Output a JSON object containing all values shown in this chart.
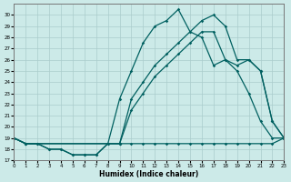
{
  "bg_color": "#cceae8",
  "line_color": "#006060",
  "grid_color": "#aacccc",
  "xlabel": "Humidex (Indice chaleur)",
  "xlim": [
    0,
    23
  ],
  "ylim": [
    17,
    31
  ],
  "xticks": [
    0,
    1,
    2,
    3,
    4,
    5,
    6,
    7,
    8,
    9,
    10,
    11,
    12,
    13,
    14,
    15,
    16,
    17,
    18,
    19,
    20,
    21,
    22,
    23
  ],
  "yticks": [
    17,
    18,
    19,
    20,
    21,
    22,
    23,
    24,
    25,
    26,
    27,
    28,
    29,
    30
  ],
  "line1_x": [
    0,
    1,
    2,
    3,
    4,
    5,
    6,
    7,
    8,
    9,
    10,
    11,
    12,
    13,
    14,
    15,
    16,
    17,
    18,
    19,
    20,
    21,
    22,
    23
  ],
  "line1_y": [
    19.0,
    18.5,
    18.5,
    18.0,
    18.0,
    17.5,
    17.5,
    17.5,
    18.5,
    18.5,
    18.5,
    18.5,
    18.5,
    18.5,
    18.5,
    18.5,
    18.5,
    18.5,
    18.5,
    18.5,
    18.5,
    18.5,
    18.5,
    19.0
  ],
  "line2_x": [
    0,
    1,
    2,
    3,
    4,
    5,
    6,
    7,
    8,
    9,
    10,
    11,
    12,
    13,
    14,
    15,
    16,
    17,
    18,
    19,
    20,
    21,
    22,
    23
  ],
  "line2_y": [
    19.0,
    18.5,
    18.5,
    18.0,
    18.0,
    17.5,
    17.5,
    17.5,
    18.5,
    22.5,
    25.0,
    27.5,
    29.0,
    29.5,
    30.5,
    28.5,
    28.0,
    25.5,
    26.0,
    25.0,
    23.0,
    20.5,
    19.0,
    19.0
  ],
  "line3_x": [
    0,
    1,
    9,
    10,
    11,
    12,
    13,
    14,
    15,
    16,
    17,
    18,
    19,
    20,
    21,
    22,
    23
  ],
  "line3_y": [
    19.0,
    18.5,
    18.5,
    22.5,
    24.0,
    25.5,
    26.5,
    27.5,
    28.5,
    29.5,
    30.0,
    29.0,
    26.0,
    26.0,
    25.0,
    20.5,
    19.0
  ],
  "line4_x": [
    0,
    1,
    9,
    10,
    11,
    12,
    13,
    14,
    15,
    16,
    17,
    18,
    19,
    20,
    21,
    22,
    23
  ],
  "line4_y": [
    19.0,
    18.5,
    18.5,
    21.5,
    23.0,
    24.5,
    25.5,
    26.5,
    27.5,
    28.5,
    28.5,
    26.0,
    25.5,
    26.0,
    25.0,
    20.5,
    19.0
  ]
}
